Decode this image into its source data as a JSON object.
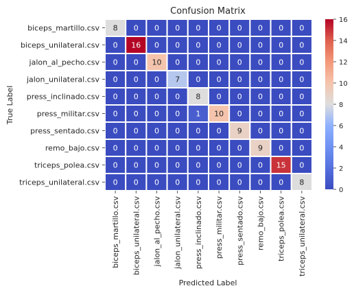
{
  "chart_data": {
    "type": "heatmap",
    "title": "Confusion Matrix",
    "xlabel": "Predicted Label",
    "ylabel": "True Label",
    "row_labels": [
      "biceps_martillo.csv",
      "biceps_unilateral.csv",
      "jalon_al_pecho.csv",
      "jalon_unilateral.csv",
      "press_inclinado.csv",
      "press_militar.csv",
      "press_sentado.csv",
      "remo_bajo.csv",
      "triceps_polea.csv",
      "triceps_unilateral.csv"
    ],
    "col_labels": [
      "biceps_martillo.csv",
      "biceps_unilateral.csv",
      "jalon_al_pecho.csv",
      "jalon_unilateral.csv",
      "press_inclinado.csv",
      "press_militar.csv",
      "press_sentado.csv",
      "remo_bajo.csv",
      "triceps_polea.csv",
      "triceps_unilateral.csv"
    ],
    "matrix": [
      [
        8,
        0,
        0,
        0,
        0,
        0,
        0,
        0,
        0,
        0
      ],
      [
        0,
        16,
        0,
        0,
        0,
        0,
        0,
        0,
        0,
        0
      ],
      [
        0,
        0,
        10,
        0,
        0,
        0,
        0,
        0,
        0,
        0
      ],
      [
        0,
        0,
        0,
        7,
        0,
        0,
        0,
        0,
        0,
        0
      ],
      [
        0,
        0,
        0,
        0,
        8,
        0,
        0,
        0,
        0,
        0
      ],
      [
        0,
        0,
        0,
        0,
        1,
        10,
        0,
        0,
        0,
        0
      ],
      [
        0,
        0,
        0,
        0,
        0,
        0,
        9,
        0,
        0,
        0
      ],
      [
        0,
        0,
        0,
        0,
        0,
        0,
        0,
        9,
        0,
        0
      ],
      [
        0,
        0,
        0,
        0,
        0,
        0,
        0,
        0,
        15,
        0
      ],
      [
        0,
        0,
        0,
        0,
        0,
        0,
        0,
        0,
        0,
        8
      ]
    ],
    "colormap": "coolwarm",
    "colorbar_range": [
      0,
      16
    ],
    "colorbar_ticks": [
      0,
      2,
      4,
      6,
      8,
      10,
      12,
      14,
      16
    ]
  }
}
